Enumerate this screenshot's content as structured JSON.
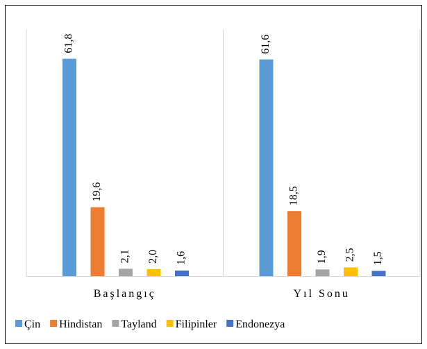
{
  "chart_data": {
    "type": "bar",
    "categories": [
      "Başlangıç",
      "Yıl Sonu"
    ],
    "series": [
      {
        "name": "Çin",
        "color": "#5b9bd5",
        "values": [
          61.8,
          61.6
        ],
        "value_labels": [
          "61,8",
          "61,6"
        ]
      },
      {
        "name": "Hindistan",
        "color": "#ed7d31",
        "values": [
          19.6,
          18.5
        ],
        "value_labels": [
          "19,6",
          "18,5"
        ]
      },
      {
        "name": "Tayland",
        "color": "#a5a5a5",
        "values": [
          2.1,
          1.9
        ],
        "value_labels": [
          "2,1",
          "1,9"
        ]
      },
      {
        "name": "Filipinler",
        "color": "#ffc000",
        "values": [
          2.0,
          2.5
        ],
        "value_labels": [
          "2,0",
          "2,5"
        ]
      },
      {
        "name": "Endonezya",
        "color": "#4472c4",
        "values": [
          1.6,
          1.5
        ],
        "value_labels": [
          "1,6",
          "1,5"
        ]
      }
    ],
    "legend": "bottom"
  }
}
